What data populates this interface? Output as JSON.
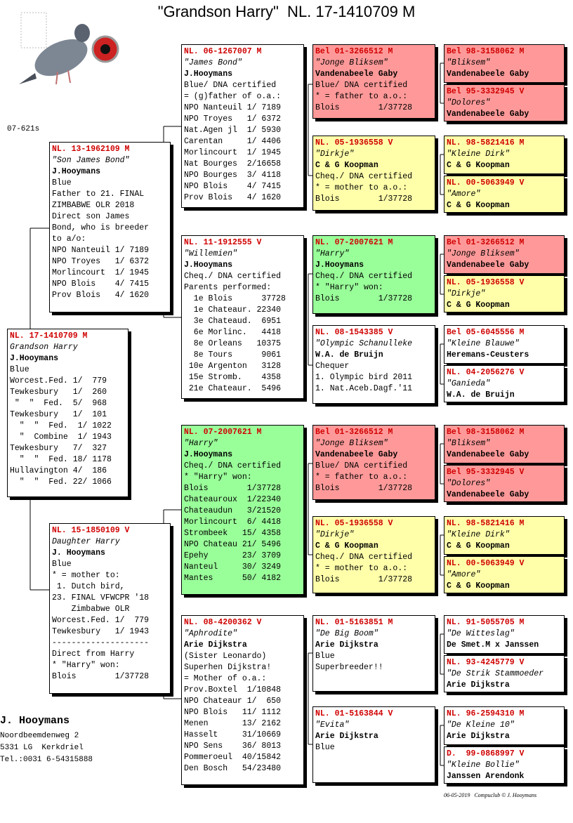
{
  "title": "\"Grandson Harry\"  NL. 17-1410709 M",
  "code": "07-621s",
  "boxes": [
    {
      "ring": "NL. 17-1410709 M",
      "name": "Grandson Harry",
      "breeder": "J.Hooymans",
      "fill": "#ffffff",
      "lines": [
        "Blue",
        "Worcest.Fed. 1/  779",
        "Tewkesbury   1/  260",
        " \"  \"  Fed.  5/  968",
        "Tewkesbury   1/  101",
        "  \"  \"  Fed.  1/ 1022",
        "  \"  Combine  1/ 1943",
        "Tewkesbury   7/  327",
        "  \"  \"  Fed. 18/ 1178",
        "Hullavington 4/  186",
        "  \"  \"  Fed. 22/ 1066"
      ]
    },
    {
      "ring": "NL. 13-1962109 M",
      "name": "\"Son James Bond\"",
      "breeder": "J.Hooymans",
      "fill": "#ffffff",
      "lines": [
        "Blue",
        "Father to 21. FINAL",
        "ZIMBABWE OLR 2018",
        "Direct son James",
        "Bond, who is breeder",
        "to a/o:",
        "NPO Nanteuil 1/ 7189",
        "NPO Troyes   1/ 6372",
        "Morlincourt  1/ 1945",
        "NPO Blois    4/ 7415",
        "Prov Blois   4/ 1620"
      ]
    },
    {
      "ring": "NL. 15-1850109 V",
      "name": "Daughter Harry",
      "breeder": "J. Hooymans",
      "fill": "#ffffff",
      "lines": [
        "Blue",
        "* = mother to:",
        " 1. Dutch bird,",
        "23. FINAL VFWCPR '18",
        "    Zimbabwe OLR",
        "Worcest.Fed. 1/  779",
        "Tewkesbury   1/ 1943",
        "--------------------",
        "Direct from Harry",
        "* \"Harry\" won:",
        "Blois        1/37728"
      ]
    },
    {
      "ring": "NL. 06-1267007 M",
      "name": "\"James Bond\"",
      "breeder": "J.Hooymans",
      "fill": "#ffffff",
      "lines": [
        "Blue/ DNA certified",
        "= (g)father of o.a.:",
        "NPO Nanteuil 1/ 7189",
        "NPO Troyes   1/ 6372",
        "Nat.Agen jl  1/ 5930",
        "Carentan     1/ 4406",
        "Morlincourt  1/ 1945",
        "Nat Bourges  2/16658",
        "NPO Bourges  3/ 4118",
        "NPO Blois    4/ 7415",
        "Prov Blois   4/ 1620"
      ]
    },
    {
      "ring": "NL. 11-1912555 V",
      "name": "\"Willemien\"",
      "breeder": "J.Hooymans",
      "fill": "#ffffff",
      "lines": [
        "Cheq./ DNA certified",
        "Parents performed:",
        "  1e Blois      37728",
        "  1e Chateaur. 22340",
        "  3e Chateaud.  6951",
        "  6e Morlinc.   4418",
        "  8e Orleans   10375",
        "  8e Tours      9061",
        " 10e Argenton   3128",
        " 15e Stromb.    4358",
        " 21e Chateaur.  5496"
      ]
    },
    {
      "ring": "NL. 07-2007621 M",
      "name": "\"Harry\"",
      "breeder": "J.Hooymans",
      "fill": "#99ff99",
      "lines": [
        "Cheq./ DNA certified",
        "* \"Harry\" won:",
        "Blois        1/37728",
        "Chateauroux  1/22340",
        "Chateaudun   3/21520",
        "Morlincourt  6/ 4418",
        "Strombeek   15/ 4358",
        "NPO Chateau 21/ 5496",
        "Epehy       23/ 3709",
        "Nanteul     30/ 3249",
        "Mantes      50/ 4182"
      ]
    },
    {
      "ring": "NL. 08-4200362 V",
      "name": "\"Aphrodite\"",
      "breeder": "Arie Dijkstra",
      "fill": "#ffffff",
      "lines": [
        "(Sister Leonardo)",
        "Superhen Dijkstra!",
        "= Mother of o.a.:",
        "Prov.Boxtel  1/10848",
        "NPO Chateaur 1/  650",
        "NPO Blois   11/ 1112",
        "Menen       13/ 2162",
        "Hasselt     31/10669",
        "NPO Sens    36/ 8013",
        "Pommeroeul  40/15842",
        "Den Bosch   54/23480"
      ]
    },
    {
      "ring": "Bel 01-3266512 M",
      "name": "\"Jonge Bliksem\"",
      "breeder": "Vandenabeele Gaby",
      "fill": "#ff9999",
      "lines": [
        "Blue/ DNA certified",
        "* = father to a.o.:",
        "Blois        1/37728"
      ]
    },
    {
      "ring": "NL. 05-1936558 V",
      "name": "\"Dirkje\"",
      "breeder": "C & G Koopman",
      "fill": "#ffffaa",
      "lines": [
        "Cheq./ DNA certified",
        "* = mother to a.o.:",
        "Blois        1/37728"
      ]
    },
    {
      "ring": "NL. 07-2007621 M",
      "name": "\"Harry\"",
      "breeder": "J.Hooymans",
      "fill": "#99ff99",
      "lines": [
        "Cheq./ DNA certified",
        "* \"Harry\" won:",
        "Blois        1/37728"
      ]
    },
    {
      "ring": "NL. 08-1543385 V",
      "name": "\"Olympic Schanulleke",
      "breeder": "W.A. de Bruijn",
      "fill": "#ffffff",
      "lines": [
        "Chequer",
        "1. Olympic bird 2011",
        "1. Nat.Aceb.Dagf.'11"
      ]
    },
    {
      "ring": "Bel 01-3266512 M",
      "name": "\"Jonge Bliksem\"",
      "breeder": "Vandenabeele Gaby",
      "fill": "#ff9999",
      "lines": [
        "Blue/ DNA certified",
        "* = father to a.o.:",
        "Blois        1/37728"
      ]
    },
    {
      "ring": "NL. 05-1936558 V",
      "name": "\"Dirkje\"",
      "breeder": "C & G Koopman",
      "fill": "#ffffaa",
      "lines": [
        "Cheq./ DNA certified",
        "* = mother to a.o.:",
        "Blois        1/37728"
      ]
    },
    {
      "ring": "NL. 01-5163851 M",
      "name": "\"De Big Boom\"",
      "breeder": "Arie Dijkstra",
      "fill": "#ffffff",
      "lines": [
        "Blue",
        "Superbreeder!!"
      ]
    },
    {
      "ring": "NL. 01-5163844 V",
      "name": "\"Evita\"",
      "breeder": "Arie Dijkstra",
      "fill": "#ffffff",
      "lines": [
        "Blue"
      ]
    },
    {
      "ring": "Bel 98-3158062 M",
      "name": "\"Bliksem\"",
      "breeder": "Vandenabeele Gaby",
      "fill": "#ff9999",
      "lines": []
    },
    {
      "ring": "Bel 95-3332945 V",
      "name": "\"Dolores\"",
      "breeder": "Vandenabeele Gaby",
      "fill": "#ff9999",
      "lines": []
    },
    {
      "ring": "NL. 98-5821416 M",
      "name": "\"Kleine Dirk\"",
      "breeder": "C & G Koopman",
      "fill": "#ffffaa",
      "lines": []
    },
    {
      "ring": "NL. 00-5063949 V",
      "name": "\"Amore\"",
      "breeder": "C & G Koopman",
      "fill": "#ffffaa",
      "lines": []
    },
    {
      "ring": "Bel 01-3266512 M",
      "name": "\"Jonge Bliksem\"",
      "breeder": "Vandenabeele Gaby",
      "fill": "#ff9999",
      "lines": []
    },
    {
      "ring": "NL. 05-1936558 V",
      "name": "\"Dirkje\"",
      "breeder": "C & G Koopman",
      "fill": "#ffffaa",
      "lines": []
    },
    {
      "ring": "Bel 05-6045556 M",
      "name": "\"Kleine Blauwe\"",
      "breeder": "Heremans-Ceusters",
      "fill": "#ffffff",
      "lines": []
    },
    {
      "ring": "NL. 04-2056276 V",
      "name": "\"Ganieda\"",
      "breeder": "W.A. de Bruijn",
      "fill": "#ffffff",
      "lines": []
    },
    {
      "ring": "Bel 98-3158062 M",
      "name": "\"Bliksem\"",
      "breeder": "Vandenabeele Gaby",
      "fill": "#ff9999",
      "lines": []
    },
    {
      "ring": "Bel 95-3332945 V",
      "name": "\"Dolores\"",
      "breeder": "Vandenabeele Gaby",
      "fill": "#ff9999",
      "lines": []
    },
    {
      "ring": "NL. 98-5821416 M",
      "name": "\"Kleine Dirk\"",
      "breeder": "C & G Koopman",
      "fill": "#ffffaa",
      "lines": []
    },
    {
      "ring": "NL. 00-5063949 V",
      "name": "\"Amore\"",
      "breeder": "C & G Koopman",
      "fill": "#ffffaa",
      "lines": []
    },
    {
      "ring": "NL. 91-5055705 M",
      "name": "\"De Witteslag\"",
      "breeder": "De Smet.M x Janssen",
      "fill": "#ffffff",
      "lines": []
    },
    {
      "ring": "NL. 93-4245779 V",
      "name": "\"De Strik Stammoeder",
      "breeder": "Arie Dijkstra",
      "fill": "#ffffff",
      "lines": []
    },
    {
      "ring": "NL. 96-2594310 M",
      "name": "\"De Kleine 10\"",
      "breeder": "Arie Dijkstra",
      "fill": "#ffffff",
      "lines": []
    },
    {
      "ring": "D.  99-0868997 V",
      "name": "\"Kleine Bollie\"",
      "breeder": "Janssen Arendonk",
      "fill": "#ffffff",
      "lines": []
    }
  ],
  "owner": {
    "name": "J. Hooymans",
    "address": [
      "Noordbeemdenweg 2",
      "5331 LG  Kerkdriel",
      "Tel.:0031 6-54315888"
    ]
  },
  "footer": "06-05-2019   Compuclub © J. Hooymans"
}
